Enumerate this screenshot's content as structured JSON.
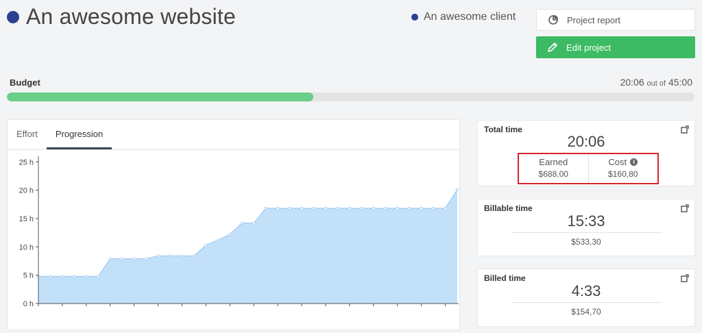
{
  "colors": {
    "project_dot": "#2b3f8f",
    "accent_green": "#3dba64",
    "budget_fill": "#6bcf8a",
    "chart_fill": "#c3e0f9",
    "chart_line": "#9ccaf2",
    "highlight_red": "#d8232a"
  },
  "header": {
    "title": "An awesome website",
    "client": "An awesome client"
  },
  "actions": {
    "report_label": "Project report",
    "report_icon": "pie-chart-icon",
    "edit_label": "Edit project",
    "edit_icon": "pencil-icon"
  },
  "budget": {
    "label": "Budget",
    "spent": "20:06",
    "out_of": "out of",
    "total": "45:00",
    "progress": 0.446
  },
  "tabs": [
    {
      "label": "Effort",
      "active": false
    },
    {
      "label": "Progression",
      "active": true
    }
  ],
  "stats": {
    "total": {
      "title": "Total time",
      "value": "20:06",
      "earned_label": "Earned",
      "earned": "$688,00",
      "cost_label": "Cost",
      "cost": "$160,80"
    },
    "billable": {
      "title": "Billable time",
      "value": "15:33",
      "amount": "$533,30"
    },
    "billed": {
      "title": "Billed time",
      "value": "4:33",
      "amount": "$154,70"
    }
  },
  "chart_data": {
    "type": "area",
    "title": "",
    "xlabel": "",
    "ylabel": "",
    "ylim": [
      0,
      26
    ],
    "y_ticks": [
      "0 h",
      "5 h",
      "10 h",
      "15 h",
      "20 h",
      "25 h"
    ],
    "y_tick_values": [
      0,
      5,
      10,
      15,
      20,
      25
    ],
    "series": [
      {
        "values": [
          4.8,
          4.8,
          4.8,
          4.8,
          4.8,
          4.8,
          7.9,
          7.9,
          7.9,
          7.9,
          8.4,
          8.4,
          8.4,
          8.4,
          10.3,
          11.2,
          12.2,
          14.2,
          14.2,
          16.8,
          16.8,
          16.8,
          16.8,
          16.8,
          16.8,
          16.8,
          16.8,
          16.8,
          16.8,
          16.8,
          16.8,
          16.8,
          16.8,
          16.8,
          16.8,
          20.1
        ]
      }
    ],
    "grid": false
  }
}
